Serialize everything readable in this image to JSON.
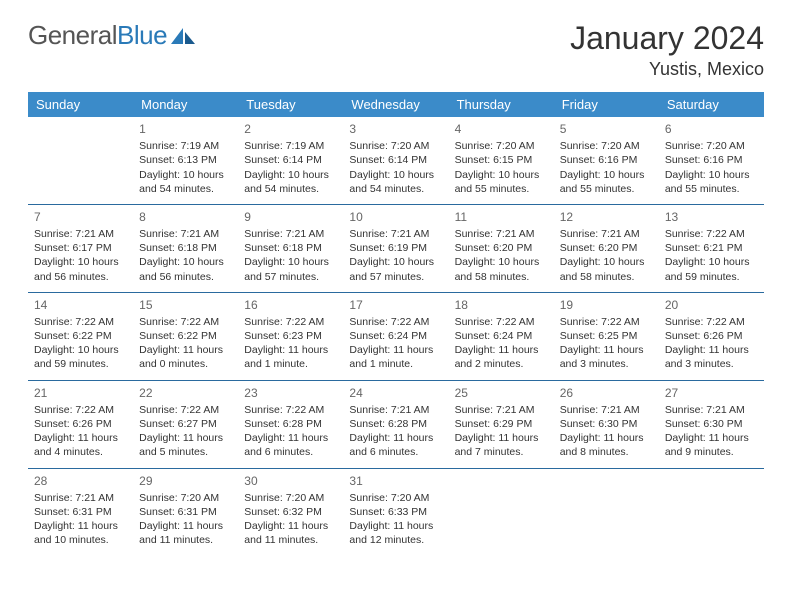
{
  "logo": {
    "text1": "General",
    "text2": "Blue"
  },
  "title": "January 2024",
  "location": "Yustis, Mexico",
  "colors": {
    "header_bg": "#3b8bc9",
    "header_text": "#ffffff",
    "row_border": "#2a6a9e",
    "text": "#333333",
    "logo_gray": "#555555",
    "logo_blue": "#2a7ab8"
  },
  "weekdays": [
    "Sunday",
    "Monday",
    "Tuesday",
    "Wednesday",
    "Thursday",
    "Friday",
    "Saturday"
  ],
  "first_weekday_index": 1,
  "label_sunrise": "Sunrise:",
  "label_sunset": "Sunset:",
  "label_daylight": "Daylight:",
  "days": [
    {
      "n": 1,
      "sunrise": "7:19 AM",
      "sunset": "6:13 PM",
      "daylight": "10 hours and 54 minutes."
    },
    {
      "n": 2,
      "sunrise": "7:19 AM",
      "sunset": "6:14 PM",
      "daylight": "10 hours and 54 minutes."
    },
    {
      "n": 3,
      "sunrise": "7:20 AM",
      "sunset": "6:14 PM",
      "daylight": "10 hours and 54 minutes."
    },
    {
      "n": 4,
      "sunrise": "7:20 AM",
      "sunset": "6:15 PM",
      "daylight": "10 hours and 55 minutes."
    },
    {
      "n": 5,
      "sunrise": "7:20 AM",
      "sunset": "6:16 PM",
      "daylight": "10 hours and 55 minutes."
    },
    {
      "n": 6,
      "sunrise": "7:20 AM",
      "sunset": "6:16 PM",
      "daylight": "10 hours and 55 minutes."
    },
    {
      "n": 7,
      "sunrise": "7:21 AM",
      "sunset": "6:17 PM",
      "daylight": "10 hours and 56 minutes."
    },
    {
      "n": 8,
      "sunrise": "7:21 AM",
      "sunset": "6:18 PM",
      "daylight": "10 hours and 56 minutes."
    },
    {
      "n": 9,
      "sunrise": "7:21 AM",
      "sunset": "6:18 PM",
      "daylight": "10 hours and 57 minutes."
    },
    {
      "n": 10,
      "sunrise": "7:21 AM",
      "sunset": "6:19 PM",
      "daylight": "10 hours and 57 minutes."
    },
    {
      "n": 11,
      "sunrise": "7:21 AM",
      "sunset": "6:20 PM",
      "daylight": "10 hours and 58 minutes."
    },
    {
      "n": 12,
      "sunrise": "7:21 AM",
      "sunset": "6:20 PM",
      "daylight": "10 hours and 58 minutes."
    },
    {
      "n": 13,
      "sunrise": "7:22 AM",
      "sunset": "6:21 PM",
      "daylight": "10 hours and 59 minutes."
    },
    {
      "n": 14,
      "sunrise": "7:22 AM",
      "sunset": "6:22 PM",
      "daylight": "10 hours and 59 minutes."
    },
    {
      "n": 15,
      "sunrise": "7:22 AM",
      "sunset": "6:22 PM",
      "daylight": "11 hours and 0 minutes."
    },
    {
      "n": 16,
      "sunrise": "7:22 AM",
      "sunset": "6:23 PM",
      "daylight": "11 hours and 1 minute."
    },
    {
      "n": 17,
      "sunrise": "7:22 AM",
      "sunset": "6:24 PM",
      "daylight": "11 hours and 1 minute."
    },
    {
      "n": 18,
      "sunrise": "7:22 AM",
      "sunset": "6:24 PM",
      "daylight": "11 hours and 2 minutes."
    },
    {
      "n": 19,
      "sunrise": "7:22 AM",
      "sunset": "6:25 PM",
      "daylight": "11 hours and 3 minutes."
    },
    {
      "n": 20,
      "sunrise": "7:22 AM",
      "sunset": "6:26 PM",
      "daylight": "11 hours and 3 minutes."
    },
    {
      "n": 21,
      "sunrise": "7:22 AM",
      "sunset": "6:26 PM",
      "daylight": "11 hours and 4 minutes."
    },
    {
      "n": 22,
      "sunrise": "7:22 AM",
      "sunset": "6:27 PM",
      "daylight": "11 hours and 5 minutes."
    },
    {
      "n": 23,
      "sunrise": "7:22 AM",
      "sunset": "6:28 PM",
      "daylight": "11 hours and 6 minutes."
    },
    {
      "n": 24,
      "sunrise": "7:21 AM",
      "sunset": "6:28 PM",
      "daylight": "11 hours and 6 minutes."
    },
    {
      "n": 25,
      "sunrise": "7:21 AM",
      "sunset": "6:29 PM",
      "daylight": "11 hours and 7 minutes."
    },
    {
      "n": 26,
      "sunrise": "7:21 AM",
      "sunset": "6:30 PM",
      "daylight": "11 hours and 8 minutes."
    },
    {
      "n": 27,
      "sunrise": "7:21 AM",
      "sunset": "6:30 PM",
      "daylight": "11 hours and 9 minutes."
    },
    {
      "n": 28,
      "sunrise": "7:21 AM",
      "sunset": "6:31 PM",
      "daylight": "11 hours and 10 minutes."
    },
    {
      "n": 29,
      "sunrise": "7:20 AM",
      "sunset": "6:31 PM",
      "daylight": "11 hours and 11 minutes."
    },
    {
      "n": 30,
      "sunrise": "7:20 AM",
      "sunset": "6:32 PM",
      "daylight": "11 hours and 11 minutes."
    },
    {
      "n": 31,
      "sunrise": "7:20 AM",
      "sunset": "6:33 PM",
      "daylight": "11 hours and 12 minutes."
    }
  ]
}
